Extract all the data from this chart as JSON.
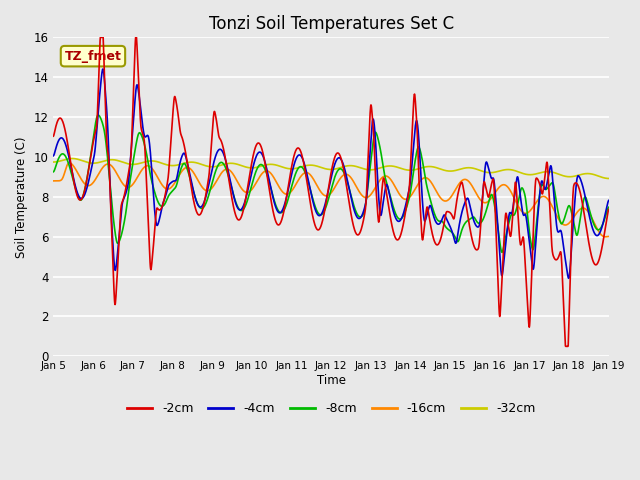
{
  "title": "Tonzi Soil Temperatures Set C",
  "xlabel": "Time",
  "ylabel": "Soil Temperature (C)",
  "ylim": [
    0,
    16
  ],
  "annotation": "TZ_fmet",
  "annotation_color": "#aa0000",
  "annotation_bg": "#ffffcc",
  "annotation_border": "#999900",
  "x_labels": [
    "Jan 5",
    "Jan 6",
    "Jan 7",
    "Jan 8",
    "Jan 9",
    "Jan 10",
    "Jan 11",
    "Jan 12",
    "Jan 13",
    "Jan 14",
    "Jan 15",
    "Jan 16",
    "Jan 17",
    "Jan 18",
    "Jan 19"
  ],
  "series": {
    "-2cm": {
      "color": "#dd0000",
      "lw": 1.2
    },
    "-4cm": {
      "color": "#0000cc",
      "lw": 1.2
    },
    "-8cm": {
      "color": "#00bb00",
      "lw": 1.2
    },
    "-16cm": {
      "color": "#ff8800",
      "lw": 1.2
    },
    "-32cm": {
      "color": "#cccc00",
      "lw": 1.2
    }
  },
  "bg_color": "#e8e8e8",
  "plot_bg": "#e8e8e8",
  "grid_color": "#ffffff",
  "title_fontsize": 12,
  "legend_fontsize": 9
}
